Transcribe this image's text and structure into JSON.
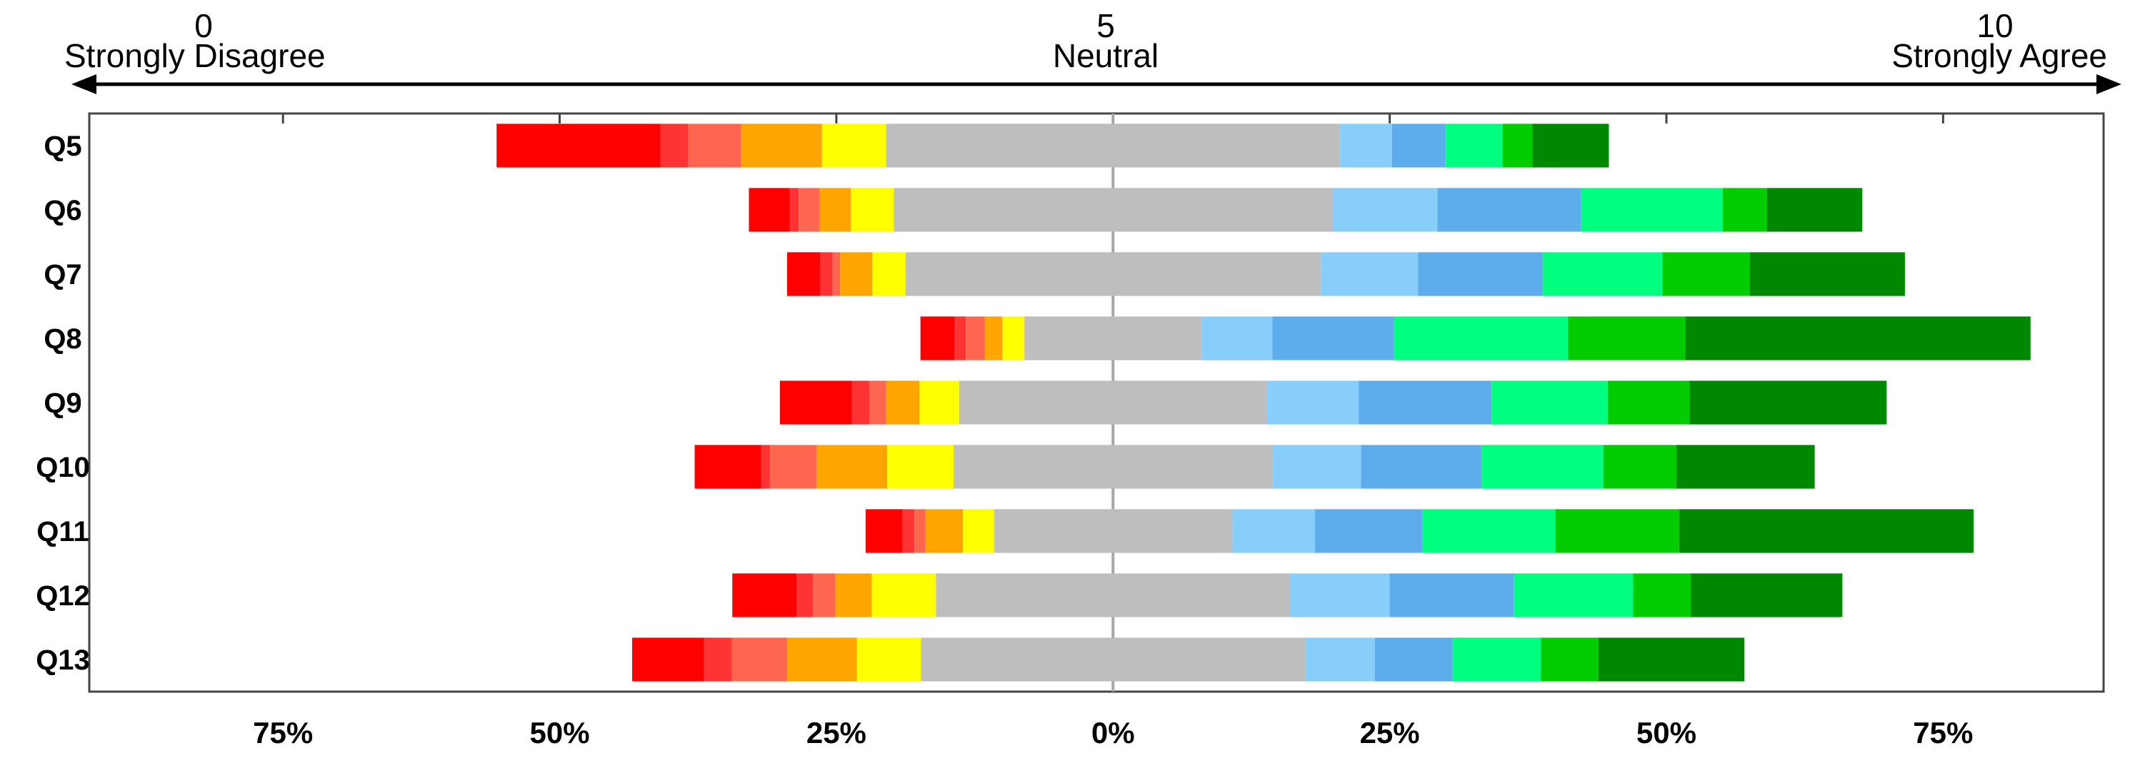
{
  "chart_data": {
    "type": "bar",
    "subtype": "diverging-stacked",
    "scale": {
      "left": {
        "number": "0",
        "label": "Strongly Disagree"
      },
      "center": {
        "number": "5",
        "label": "Neutral"
      },
      "right": {
        "number": "10",
        "label": "Strongly Agree"
      }
    },
    "categories": [
      "Q5",
      "Q6",
      "Q7",
      "Q8",
      "Q9",
      "Q10",
      "Q11",
      "Q12",
      "Q13"
    ],
    "x_ticks": [
      {
        "value": -75,
        "label": "75%"
      },
      {
        "value": -50,
        "label": "50%"
      },
      {
        "value": -25,
        "label": "25%"
      },
      {
        "value": 0,
        "label": "0%"
      },
      {
        "value": 25,
        "label": "25%"
      },
      {
        "value": 50,
        "label": "50%"
      },
      {
        "value": 75,
        "label": "75%"
      }
    ],
    "xlim": [
      -92.5,
      89.5
    ],
    "series": [
      {
        "color": "#FF0000",
        "values": [
          14.8,
          3.7,
          3.0,
          3.1,
          6.5,
          6.0,
          3.3,
          5.8,
          6.5
        ]
      },
      {
        "color": "#FF3333",
        "values": [
          2.5,
          0.8,
          1.1,
          1.0,
          1.6,
          0.8,
          1.1,
          1.5,
          2.5
        ]
      },
      {
        "color": "#FF6650",
        "values": [
          4.8,
          1.9,
          0.7,
          1.7,
          1.5,
          4.2,
          1.0,
          2.0,
          5.0
        ]
      },
      {
        "color": "#FFA500",
        "values": [
          7.3,
          2.8,
          2.9,
          1.6,
          3.0,
          6.4,
          3.4,
          3.3,
          6.3
        ]
      },
      {
        "color": "#FFFF00",
        "values": [
          5.8,
          3.9,
          3.0,
          2.0,
          3.6,
          6.0,
          2.8,
          5.8,
          5.8
        ]
      },
      {
        "color": "#BEBEBE",
        "values": [
          41.0,
          39.6,
          37.5,
          16.0,
          27.8,
          28.8,
          21.5,
          32.0,
          34.7
        ]
      },
      {
        "color": "#87CEFA",
        "values": [
          4.7,
          9.5,
          8.8,
          6.4,
          8.3,
          8.0,
          7.5,
          9.0,
          6.3
        ]
      },
      {
        "color": "#5DADEC",
        "values": [
          4.8,
          13.0,
          11.3,
          11.0,
          12.0,
          10.9,
          9.7,
          11.2,
          7.0
        ]
      },
      {
        "color": "#00FF7F",
        "values": [
          5.2,
          12.8,
          10.8,
          15.7,
          10.5,
          11.0,
          12.0,
          10.8,
          8.0
        ]
      },
      {
        "color": "#00CC00",
        "values": [
          2.7,
          4.0,
          7.9,
          10.6,
          7.4,
          6.6,
          11.2,
          5.2,
          5.2
        ]
      },
      {
        "color": "#008800",
        "values": [
          6.9,
          8.6,
          14.0,
          31.2,
          17.8,
          12.5,
          26.6,
          13.7,
          13.2
        ]
      }
    ]
  }
}
